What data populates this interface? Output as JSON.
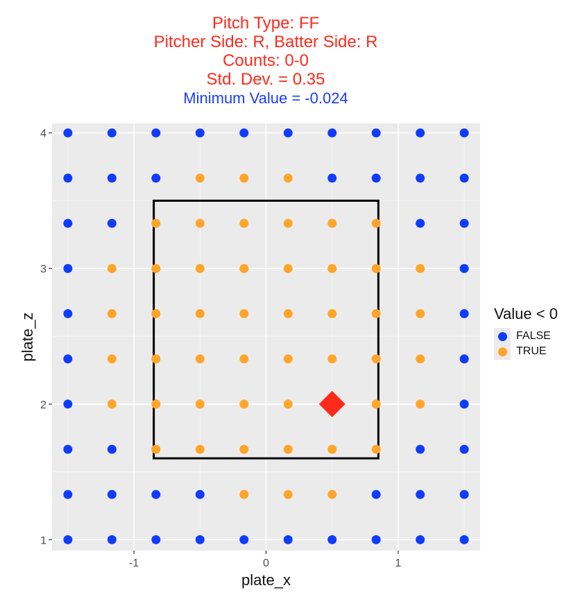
{
  "titles": {
    "line1": "Pitch Type: FF",
    "line2": "Pitcher Side: R, Batter Side: R",
    "line3": "Counts:  0-0",
    "line4": "Std. Dev. = 0.35",
    "line5": "Minimum Value = -0.024"
  },
  "colors": {
    "title": "#ff2a1a",
    "subtitle": "#1a3cff",
    "false": "#0f3cfa",
    "true": "#ffa52a",
    "marker": "#ff2a1a",
    "panel": "#ebebeb",
    "zone": "#000000"
  },
  "legend": {
    "title": "Value < 0",
    "items": [
      {
        "label": "FALSE",
        "color": "#0f3cfa"
      },
      {
        "label": "TRUE",
        "color": "#ffa52a"
      }
    ]
  },
  "chart_data": {
    "type": "scatter",
    "xlabel": "plate_x",
    "ylabel": "plate_z",
    "xlim": [
      -1.62,
      1.62
    ],
    "ylim": [
      0.92,
      4.07
    ],
    "x_ticks": [
      -1,
      0,
      1
    ],
    "y_ticks": [
      1,
      2,
      3,
      4
    ],
    "x_tick_labels": [
      "-1",
      "0",
      "1"
    ],
    "y_tick_labels": [
      "1",
      "2",
      "3",
      "4"
    ],
    "grid": true,
    "legend_position": "right",
    "x_grid": [
      -1.5,
      -1.1667,
      -0.8333,
      -0.5,
      -0.1667,
      0.1667,
      0.5,
      0.8333,
      1.1667,
      1.5
    ],
    "z_grid": [
      4.0,
      3.6667,
      3.3333,
      3.0,
      2.6667,
      2.3333,
      2.0,
      1.6667,
      1.3333,
      1.0
    ],
    "value_lt_0": [
      "FFFFFFFFFF",
      "FFFTTTFFFF",
      "FFTTTTTTFF",
      "FTTTTTTTTF",
      "FTTTTTTTTF",
      "FTTTTTTTTF",
      "FTTTTTTTTF",
      "FFTTTTTTFF",
      "FFFFTTTFFF",
      "FFFFFFFFFF"
    ],
    "strike_zone": {
      "x": [
        -0.85,
        0.85
      ],
      "z": [
        1.6,
        3.5
      ]
    },
    "highlight_point": {
      "x": 0.5,
      "z": 2.0,
      "shape": "diamond"
    }
  }
}
